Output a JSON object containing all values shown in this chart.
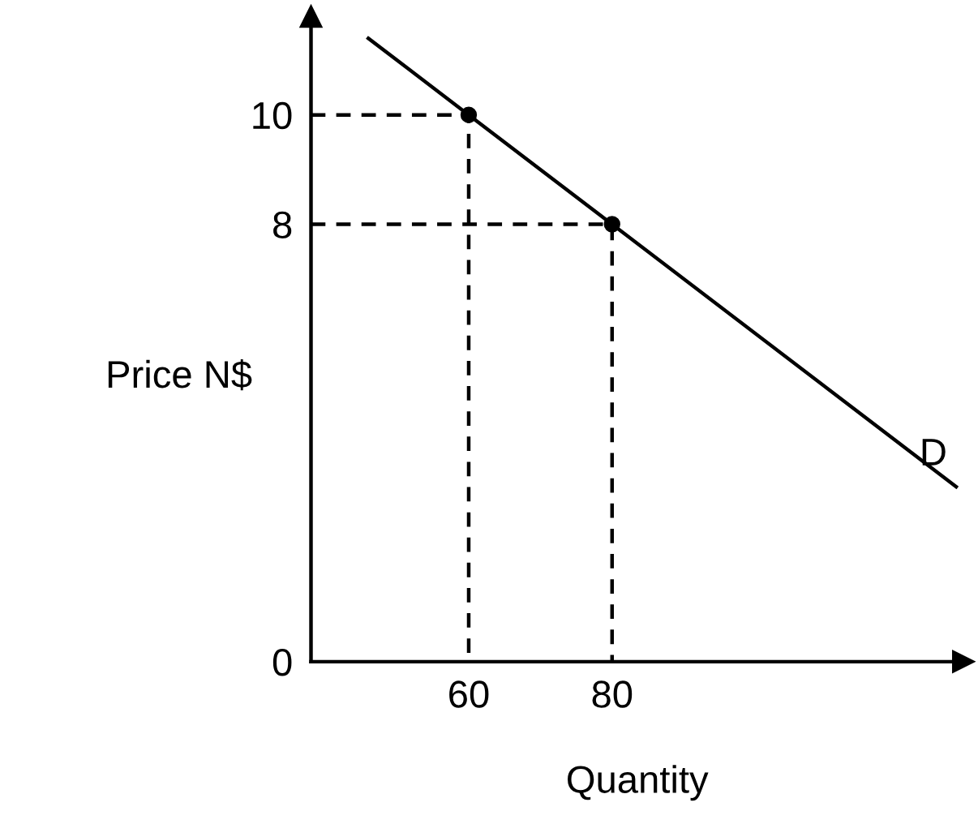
{
  "chart_data": {
    "type": "line",
    "xlabel": "Quantity",
    "ylabel": "Price N$",
    "xlim": [
      38,
      129
    ],
    "ylim": [
      0,
      11.8
    ],
    "xticks": [
      60,
      80
    ],
    "yticks": [
      0,
      8,
      10
    ],
    "grid": false,
    "legend": false,
    "series": [
      {
        "color": "#000000",
        "x": [
          46,
          60,
          80,
          128
        ],
        "values": [
          11.4,
          10,
          8,
          3.2
        ],
        "line_style": "solid",
        "marker": "none"
      },
      {
        "color": "#000000",
        "x": [
          38,
          60,
          60
        ],
        "values": [
          10,
          10,
          0
        ],
        "line_style": "dashed",
        "marker": "none"
      },
      {
        "color": "#000000",
        "x": [
          38,
          80,
          80
        ],
        "values": [
          8,
          8,
          0
        ],
        "line_style": "dashed",
        "marker": "none"
      },
      {
        "type": "scatter",
        "color": "#000000",
        "x": [
          60,
          80
        ],
        "values": [
          10,
          8
        ],
        "marker": "circle"
      }
    ],
    "annotations": [
      {
        "text": "D",
        "x": 128,
        "y": 3.2
      }
    ]
  }
}
